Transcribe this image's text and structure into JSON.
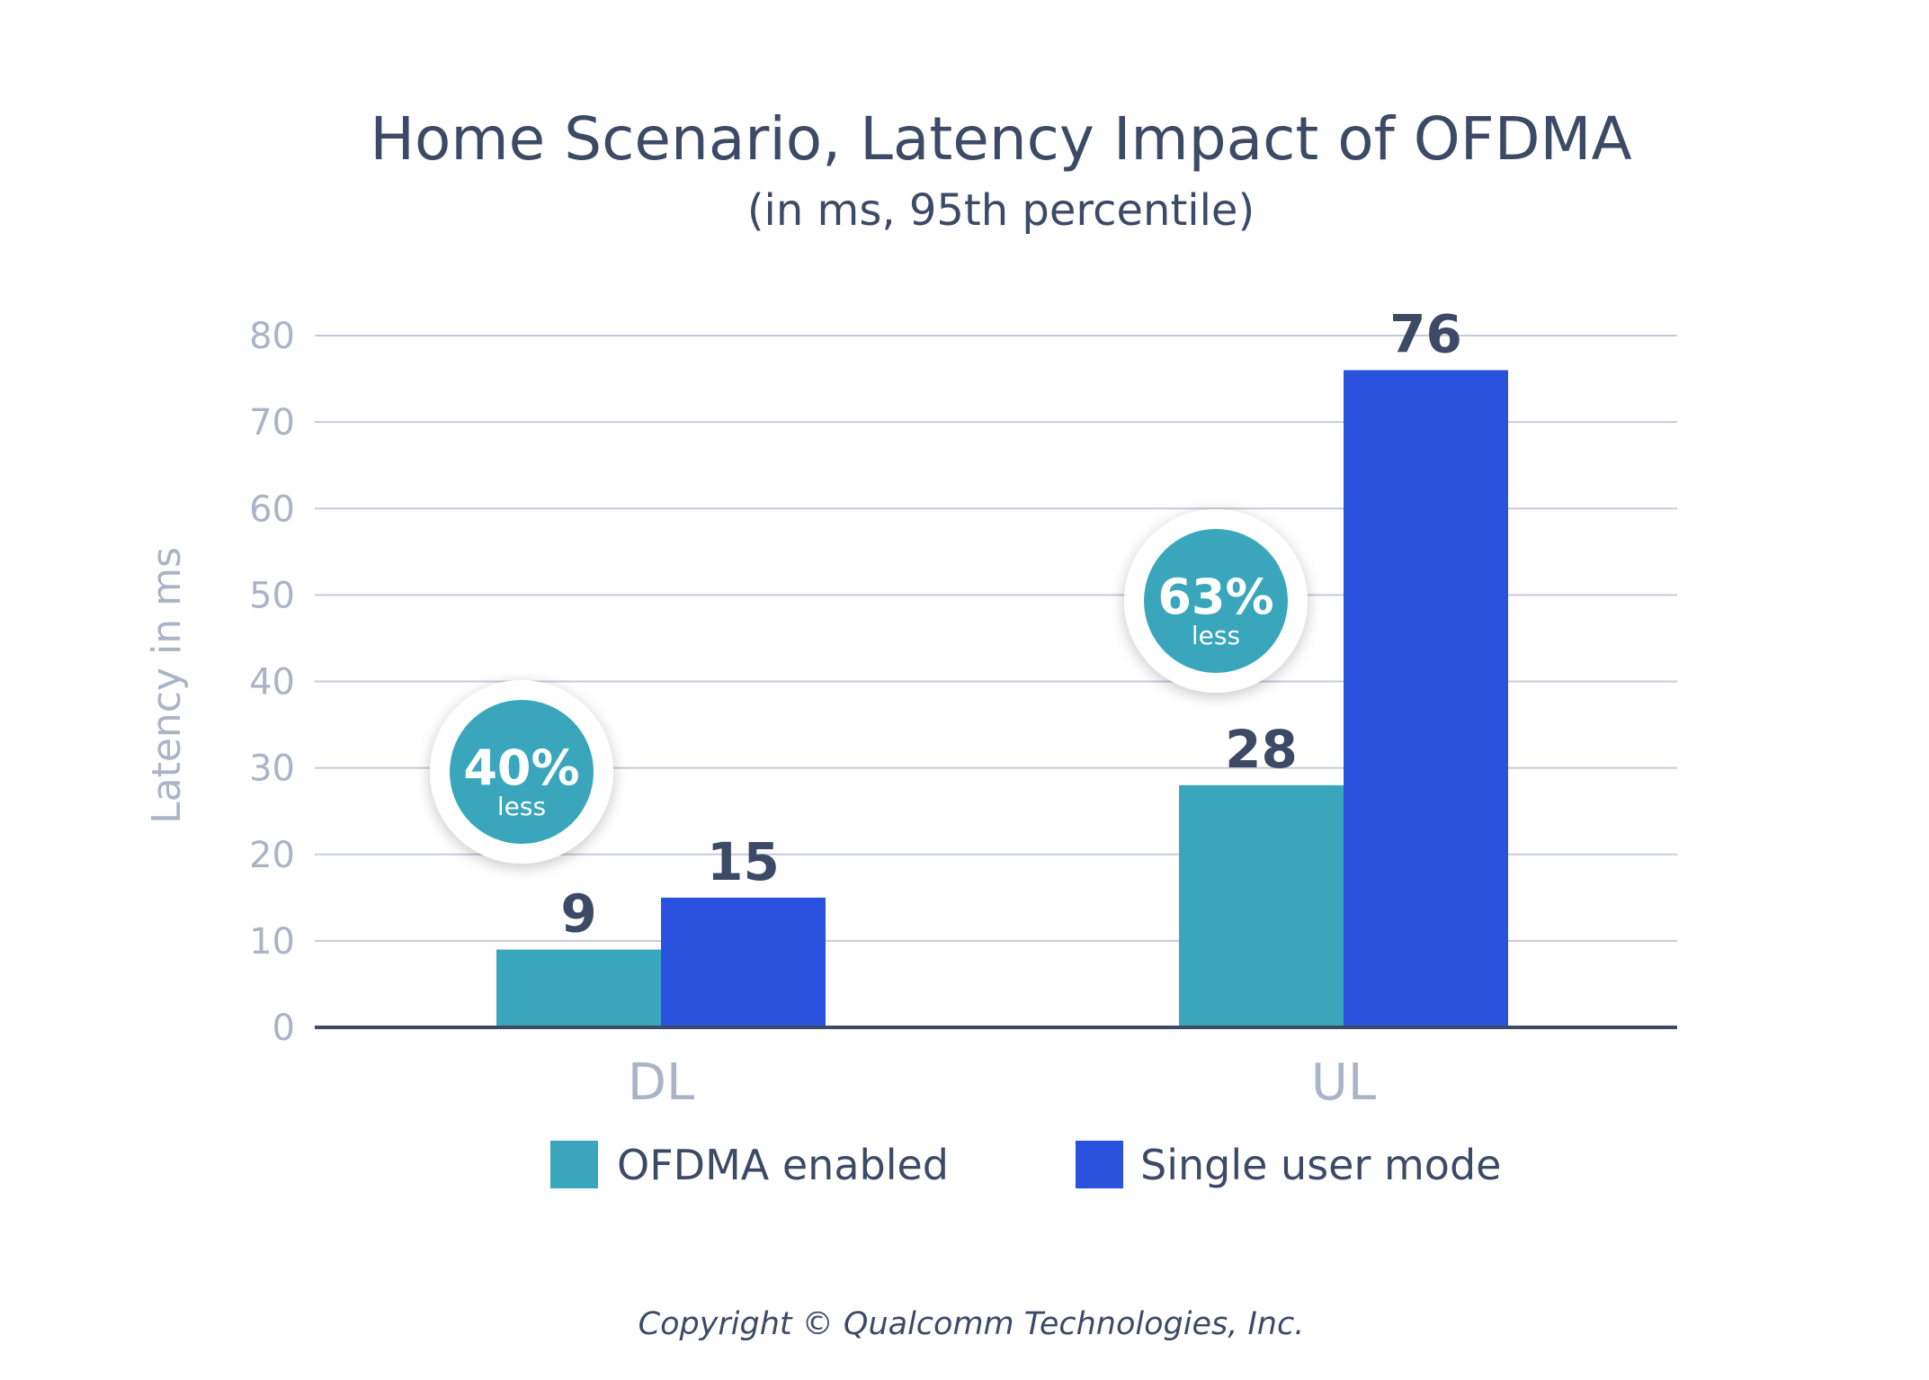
{
  "chart_data": {
    "type": "bar",
    "title": "Home Scenario, Latency Impact of OFDMA",
    "subtitle": "(in ms, 95th percentile)",
    "xlabel": "",
    "ylabel": "Latency in ms",
    "ylim": [
      0,
      80
    ],
    "yticks": [
      "0",
      "10",
      "20",
      "30",
      "40",
      "50",
      "60",
      "70",
      "80"
    ],
    "categories": [
      "DL",
      "UL"
    ],
    "series": [
      {
        "name": "OFDMA enabled",
        "values": [
          9,
          28
        ],
        "color": "#3aa6bc"
      },
      {
        "name": "Single user mode",
        "values": [
          15,
          76
        ],
        "color": "#2b52de"
      }
    ],
    "value_labels": [
      [
        "9",
        "28"
      ],
      [
        "15",
        "76"
      ]
    ],
    "annotations": [
      {
        "category": "DL",
        "percent": "40%",
        "sub": "less"
      },
      {
        "category": "UL",
        "percent": "63%",
        "sub": "less"
      }
    ],
    "grid": true,
    "legend_position": "bottom"
  },
  "copyright": "Copyright © Qualcomm Technologies, Inc.",
  "colors": {
    "gridline": "#c5cbda",
    "axis": "#3d4a66",
    "badge_fill": "#3aa6bc",
    "badge_ring": "#ffffff"
  }
}
